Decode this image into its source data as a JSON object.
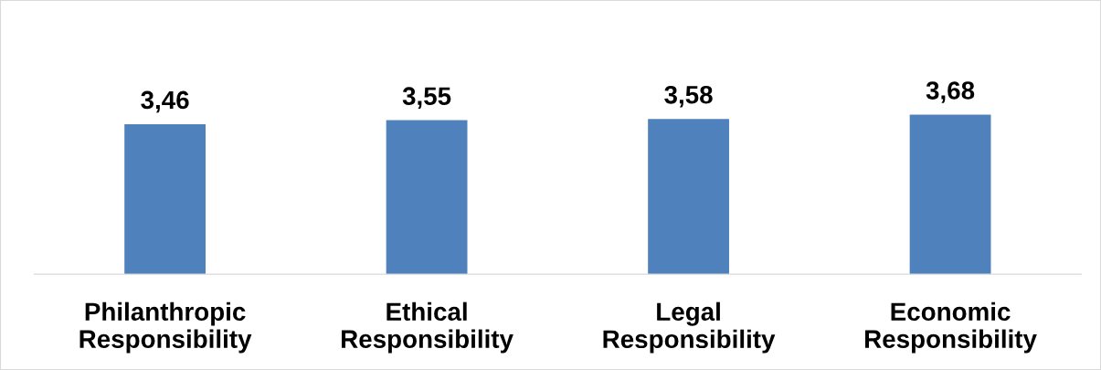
{
  "chart_data": {
    "type": "bar",
    "categories": [
      "Philanthropic Responsibility",
      "Ethical Responsibility",
      "Legal Responsibility",
      "Economic Responsibility"
    ],
    "values": [
      3.46,
      3.55,
      3.58,
      3.68
    ],
    "value_labels": [
      "3,46",
      "3,55",
      "3,58",
      "3,68"
    ],
    "color": "#4f81bd",
    "grid": false,
    "legend": false
  }
}
